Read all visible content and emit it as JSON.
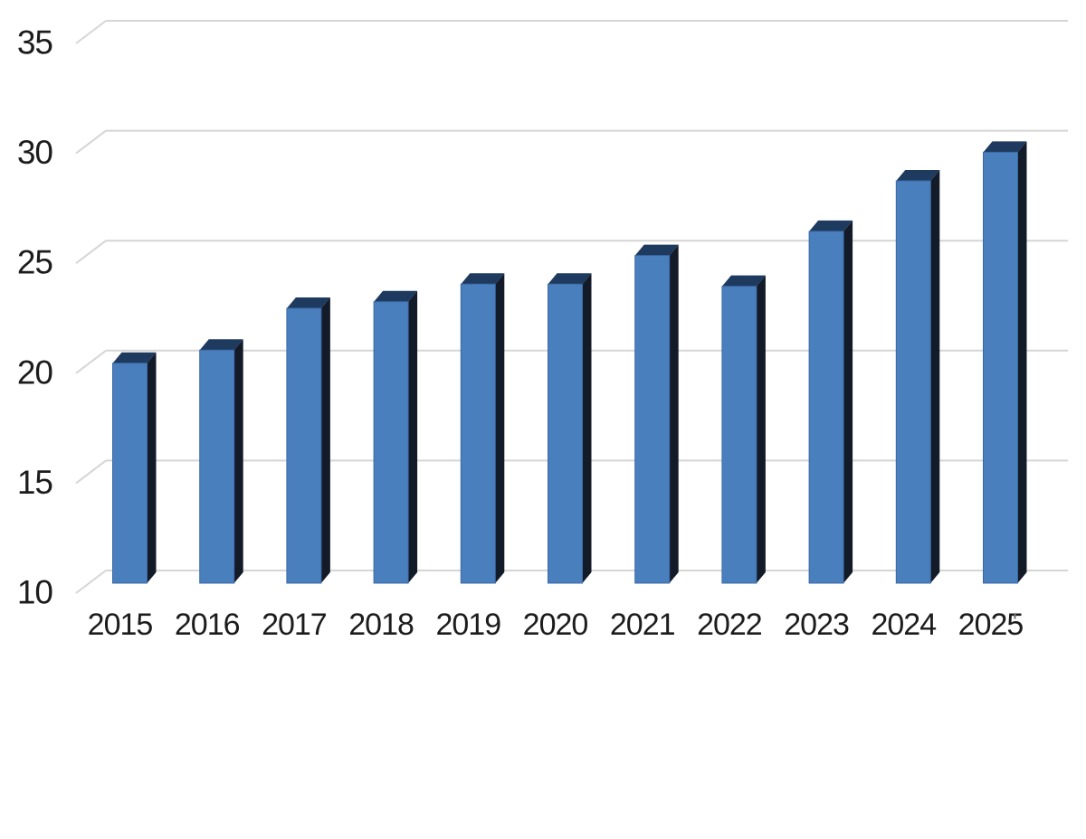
{
  "figure": {
    "title": "",
    "background": "#ffffff"
  },
  "chart_data": {
    "type": "bar",
    "style": "3d-column",
    "title": "",
    "xlabel": "",
    "ylabel": "",
    "categories": [
      "2015",
      "2016",
      "2017",
      "2018",
      "2019",
      "2020",
      "2021",
      "2022",
      "2023",
      "2024",
      "2025"
    ],
    "values": [
      20,
      20.6,
      22.5,
      22.8,
      23.6,
      23.6,
      24.9,
      23.5,
      26,
      28.3,
      29.6
    ],
    "ylim": [
      10,
      35
    ],
    "yticks": [
      35,
      30,
      25,
      20,
      15,
      10
    ],
    "grid": true,
    "legend": false,
    "colors": {
      "bar_front": "#4a7fbe",
      "bar_front_edge": "#3a6aa6",
      "bar_top": "#1e3a5f",
      "bar_side": "#141b28",
      "gridline": "#d5d5d5",
      "text": "#1c1c1c",
      "background": "#ffffff"
    },
    "annotations": [
      {
        "text": "'",
        "note": "stray tick artifact after 2025 label"
      }
    ]
  }
}
